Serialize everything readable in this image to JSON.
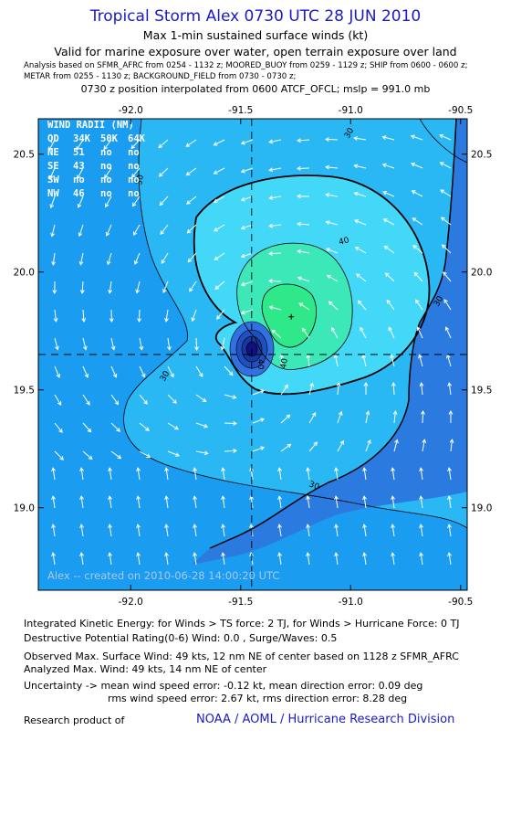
{
  "header": {
    "title": "Tropical Storm Alex 0730 UTC 28 JUN 2010",
    "subtitle1": "Max 1-min sustained surface winds (kt)",
    "subtitle2": "Valid for marine exposure over water, open terrain exposure over land",
    "analysis_line1": "Analysis based on   SFMR_AFRC from 0254 - 1132 z;   MOORED_BUOY from 0259 - 1129 z;   SHIP from 0600 - 0600 z;",
    "analysis_line2": "METAR from 0255 - 1130 z;   BACKGROUND_FIELD from 0730 - 0730 z;",
    "position_line": "0730 z position interpolated from 0600 ATCF_OFCL; mslp = 991.0 mb"
  },
  "map": {
    "lon_ticks": [
      "-92.0",
      "-91.5",
      "-91.0",
      "-90.5"
    ],
    "lat_ticks": [
      "20.5",
      "20.0",
      "19.5",
      "19.0"
    ],
    "lon_range": [
      -92.42,
      -90.47
    ],
    "lat_range": [
      18.65,
      20.65
    ],
    "center": {
      "lon": -91.45,
      "lat": 19.65
    },
    "max_wind_marker": {
      "lon": -91.27,
      "lat": 19.81
    },
    "contour_labels": [
      "30",
      "30",
      "30",
      "30",
      "40",
      "40",
      "40",
      "30"
    ],
    "colors": {
      "ocean_base": "#1a9cf0",
      "band_20_30": "#2ab8f5",
      "band_30_40": "#44d8f8",
      "band_40_50": "#3de8b8",
      "band_core": "#2ee88a",
      "land": "#2a7ae0",
      "eye_dark": "#101080"
    },
    "watermark": "Alex -- created on 2010-06-28 14:00:20 UTC",
    "wind_radii": {
      "title": "WIND RADII (NM)",
      "header": [
        "QD",
        "34K",
        "50K",
        "64K"
      ],
      "rows": [
        [
          "NE",
          "51",
          "no",
          "no"
        ],
        [
          "SE",
          "43",
          "no",
          "no"
        ],
        [
          "SW",
          "no",
          "no",
          "no"
        ],
        [
          "NW",
          "46",
          "no",
          "no"
        ]
      ]
    }
  },
  "footer": {
    "ike": "Integrated Kinetic Energy:  for Winds > TS force: 2 TJ,  for Winds > Hurricane Force: 0 TJ",
    "dpr": "Destructive Potential Rating(0-6)   Wind: 0.0 , Surge/Waves: 0.5",
    "observed": "Observed Max. Surface Wind: 49 kts, 12 nm NE of center based on 1128 z SFMR_AFRC",
    "analyzed": "Analyzed Max. Wind: 49 kts, 14 nm NE of center",
    "uncertainty1": "Uncertainty -> mean wind speed error:  -0.12 kt,   mean direction error: 0.09 deg",
    "uncertainty2": "rms wind speed error: 2.67 kt,    rms direction error: 8.28 deg",
    "research_label": "Research product of",
    "research_org": "NOAA / AOML / Hurricane Research Division"
  }
}
